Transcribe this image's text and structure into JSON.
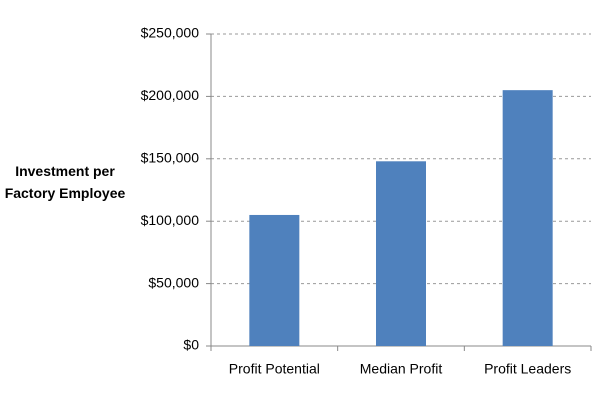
{
  "chart_data": {
    "type": "bar",
    "ylabel": "Investment per Factory Employee",
    "categories": [
      "Profit Potential",
      "Median Profit",
      "Profit Leaders"
    ],
    "values": [
      105000,
      148000,
      205000
    ],
    "color": "#4f81bd",
    "ylim": [
      0,
      250000
    ],
    "yticks": [
      {
        "value": 0,
        "label": "$0"
      },
      {
        "value": 50000,
        "label": "$50,000"
      },
      {
        "value": 100000,
        "label": "$100,000"
      },
      {
        "value": 150000,
        "label": "$150,000"
      },
      {
        "value": 200000,
        "label": "$200,000"
      },
      {
        "value": 250000,
        "label": "$250,000"
      }
    ],
    "grid": true
  }
}
